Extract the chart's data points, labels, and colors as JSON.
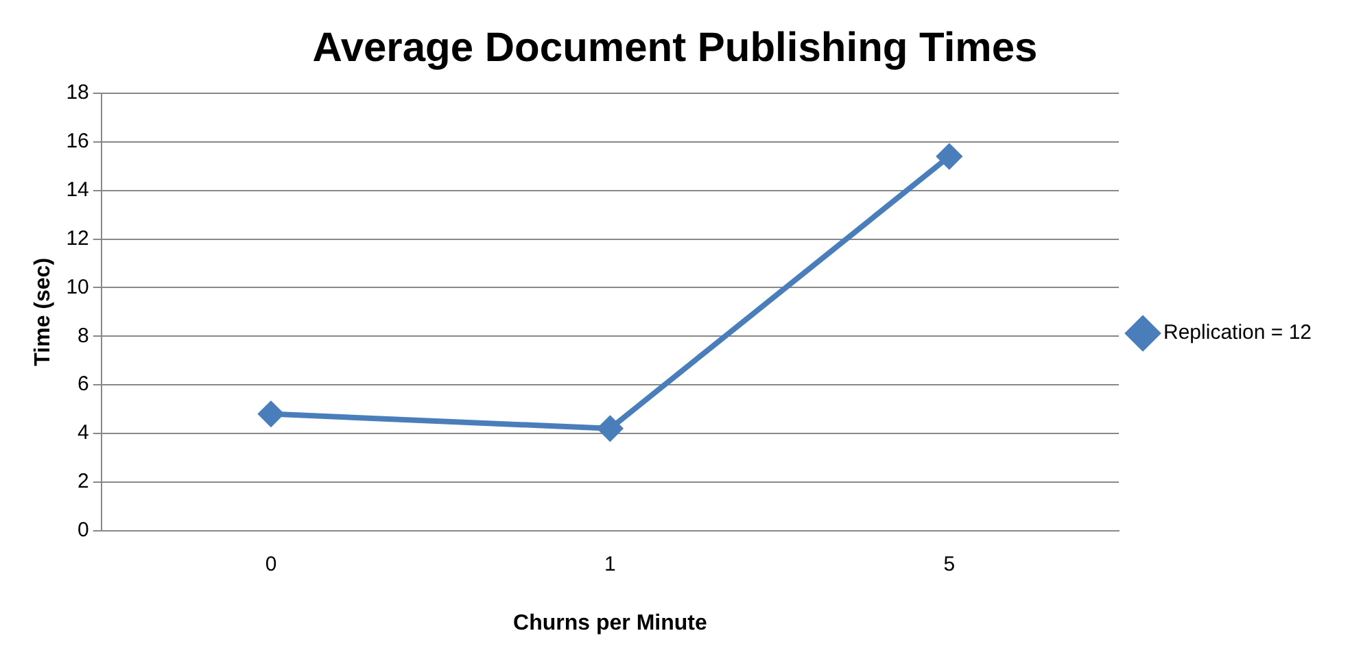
{
  "chart_data": {
    "type": "line",
    "title": "Average Document Publishing Times",
    "xlabel": "Churns per Minute",
    "ylabel": "Time (sec)",
    "categories": [
      "0",
      "1",
      "5"
    ],
    "series": [
      {
        "name": "Replication = 12",
        "color": "#4a7ebb",
        "values": [
          4.8,
          4.2,
          15.4
        ]
      }
    ],
    "ylim": [
      0,
      18
    ],
    "yticks": [
      0,
      2,
      4,
      6,
      8,
      10,
      12,
      14,
      16,
      18
    ],
    "grid": "y",
    "legend": "right",
    "marker": "diamond",
    "line_style": "solid"
  }
}
